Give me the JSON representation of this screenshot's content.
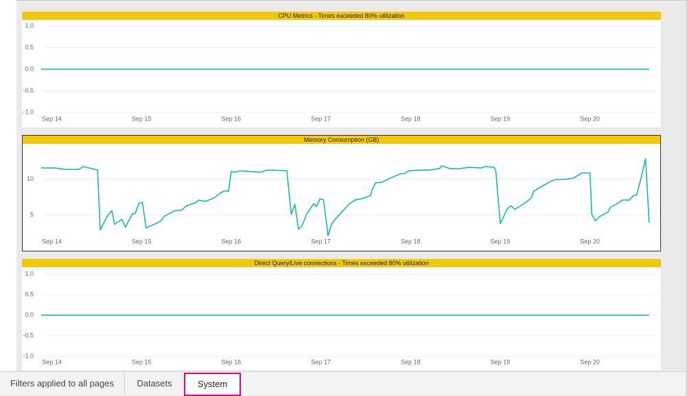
{
  "tabs": [
    "Filters applied to all pages",
    "Datasets",
    "System"
  ],
  "chart_data": [
    {
      "type": "line",
      "title": "CPU Metrics - Times exceeded 80% utilization",
      "color": "#01b8aa",
      "x": [
        13.88,
        20.66
      ],
      "values": [
        0,
        0
      ],
      "xlim": [
        13.69,
        20.73
      ],
      "xticks": [
        {
          "value": 14,
          "label": "Sep 14"
        },
        {
          "value": 15,
          "label": "Sep 15"
        },
        {
          "value": 16,
          "label": "Sep 16"
        },
        {
          "value": 17,
          "label": "Sep 17"
        },
        {
          "value": 18,
          "label": "Sep 18"
        },
        {
          "value": 19,
          "label": "Sep 19"
        },
        {
          "value": 20,
          "label": "Sep 20"
        }
      ],
      "ylim": [
        -1,
        1
      ],
      "yticks": [
        {
          "value": -1,
          "label": "-1.0"
        },
        {
          "value": -0.5,
          "label": "-0.5"
        },
        {
          "value": 0,
          "label": "0.0"
        },
        {
          "value": 0.5,
          "label": "0.5"
        },
        {
          "value": 1,
          "label": "1.0"
        }
      ],
      "grid": true
    },
    {
      "type": "line",
      "title": "Memory Consumption (GB)",
      "color": "#01b8aa",
      "x": [
        13.88,
        14.03,
        14.15,
        14.3,
        14.35,
        14.51,
        14.54,
        14.62,
        14.67,
        14.7,
        14.78,
        14.82,
        14.9,
        14.93,
        14.97,
        15.01,
        15.05,
        15.16,
        15.22,
        15.25,
        15.37,
        15.45,
        15.5,
        15.6,
        15.64,
        15.71,
        15.81,
        15.88,
        15.93,
        15.97,
        16.0,
        16.04,
        16.1,
        16.21,
        16.33,
        16.4,
        16.49,
        16.62,
        16.67,
        16.71,
        16.75,
        16.79,
        16.84,
        16.92,
        16.95,
        16.99,
        17.03,
        17.08,
        17.12,
        17.21,
        17.31,
        17.38,
        17.46,
        17.55,
        17.58,
        17.61,
        17.68,
        17.78,
        17.89,
        17.93,
        17.98,
        18.09,
        18.2,
        18.32,
        18.35,
        18.44,
        18.54,
        18.65,
        18.79,
        18.83,
        18.93,
        18.95,
        19.0,
        19.08,
        19.12,
        19.16,
        19.23,
        19.31,
        19.35,
        19.37,
        19.46,
        19.56,
        19.62,
        19.72,
        19.82,
        19.91,
        20.0,
        20.02,
        20.06,
        20.11,
        20.2,
        20.23,
        20.32,
        20.36,
        20.44,
        20.48,
        20.52,
        20.57,
        20.62,
        20.66
      ],
      "values": [
        11.6,
        11.6,
        11.4,
        11.4,
        11.8,
        11.3,
        2.9,
        4.9,
        5.6,
        3.7,
        4.4,
        3.3,
        5.2,
        5.2,
        6.6,
        6.8,
        3.2,
        3.8,
        4.2,
        4.8,
        5.6,
        5.7,
        6.3,
        6.7,
        7.1,
        6.9,
        7.4,
        8.1,
        8.4,
        8.3,
        11.1,
        11.0,
        11.2,
        11.1,
        11.0,
        11.3,
        11.3,
        11.2,
        5.1,
        6.5,
        3.0,
        3.5,
        5.1,
        6.6,
        6.2,
        7.3,
        7.1,
        2.1,
        3.8,
        5.1,
        6.5,
        7.1,
        7.3,
        7.7,
        8.8,
        9.5,
        9.6,
        10.2,
        10.8,
        10.8,
        11.2,
        11.3,
        11.3,
        11.5,
        11.9,
        11.5,
        11.5,
        11.7,
        11.6,
        11.8,
        11.7,
        11.2,
        3.8,
        5.9,
        6.3,
        5.8,
        6.3,
        7.0,
        7.5,
        8.3,
        9.0,
        9.7,
        10.0,
        10.0,
        10.2,
        10.9,
        10.9,
        5.1,
        4.2,
        4.8,
        5.4,
        6.1,
        6.7,
        7.1,
        7.1,
        7.7,
        7.8,
        10.2,
        12.9,
        3.9
      ],
      "xlim": [
        13.69,
        20.73
      ],
      "xticks": [
        {
          "value": 14,
          "label": "Sep 14"
        },
        {
          "value": 15,
          "label": "Sep 15"
        },
        {
          "value": 16,
          "label": "Sep 16"
        },
        {
          "value": 17,
          "label": "Sep 17"
        },
        {
          "value": 18,
          "label": "Sep 18"
        },
        {
          "value": 19,
          "label": "Sep 19"
        },
        {
          "value": 20,
          "label": "Sep 20"
        }
      ],
      "ylim": [
        2,
        14.5
      ],
      "yticks": [
        5,
        10
      ],
      "grid": true
    },
    {
      "type": "line",
      "title": "Direct Query/Live connections - Times exceeded 80% utilization",
      "color": "#01b8aa",
      "x": [
        13.88,
        20.66
      ],
      "values": [
        0,
        0
      ],
      "xlim": [
        13.69,
        20.73
      ],
      "xticks": [
        {
          "value": 14,
          "label": "Sep 14"
        },
        {
          "value": 15,
          "label": "Sep 15"
        },
        {
          "value": 16,
          "label": "Sep 16"
        },
        {
          "value": 17,
          "label": "Sep 17"
        },
        {
          "value": 18,
          "label": "Sep 18"
        },
        {
          "value": 19,
          "label": "Sep 19"
        },
        {
          "value": 20,
          "label": "Sep 20"
        }
      ],
      "ylim": [
        -1,
        1
      ],
      "yticks": [
        {
          "value": -1,
          "label": "-1.0"
        },
        {
          "value": -0.5,
          "label": "-0.5"
        },
        {
          "value": 0,
          "label": "0.0"
        },
        {
          "value": 0.5,
          "label": "0.5"
        },
        {
          "value": 1,
          "label": "1.0"
        }
      ],
      "grid": true
    }
  ]
}
